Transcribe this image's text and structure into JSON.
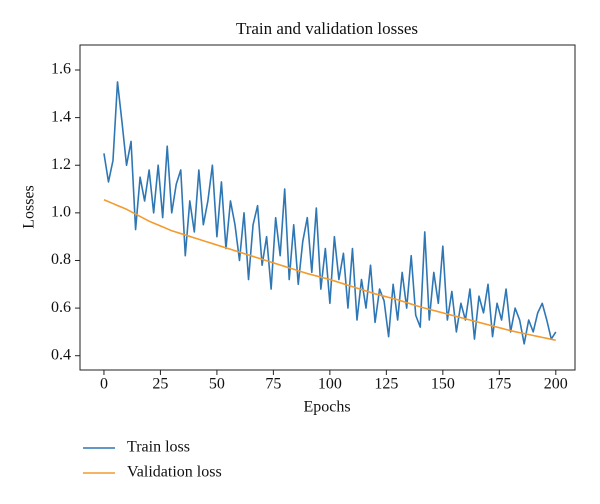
{
  "chart_data": {
    "type": "line",
    "title": "Train and validation losses",
    "xlabel": "Epochs",
    "ylabel": "Losses",
    "x": [
      0,
      2,
      4,
      6,
      8,
      10,
      12,
      14,
      16,
      18,
      20,
      22,
      24,
      26,
      28,
      30,
      32,
      34,
      36,
      38,
      40,
      42,
      44,
      46,
      48,
      50,
      52,
      54,
      56,
      58,
      60,
      62,
      64,
      66,
      68,
      70,
      72,
      74,
      76,
      78,
      80,
      82,
      84,
      86,
      88,
      90,
      92,
      94,
      96,
      98,
      100,
      102,
      104,
      106,
      108,
      110,
      112,
      114,
      116,
      118,
      120,
      122,
      124,
      126,
      128,
      130,
      132,
      134,
      136,
      138,
      140,
      142,
      144,
      146,
      148,
      150,
      152,
      154,
      156,
      158,
      160,
      162,
      164,
      166,
      168,
      170,
      172,
      174,
      176,
      178,
      180,
      182,
      184,
      186,
      188,
      190,
      192,
      194,
      196,
      198,
      200
    ],
    "series": [
      {
        "name": "Train loss",
        "color": "#2f77b4",
        "values": [
          1.25,
          1.13,
          1.22,
          1.55,
          1.38,
          1.2,
          1.3,
          0.93,
          1.15,
          1.05,
          1.18,
          1.0,
          1.2,
          0.98,
          1.28,
          1.0,
          1.12,
          1.18,
          0.82,
          1.05,
          0.92,
          1.18,
          0.95,
          1.05,
          1.2,
          0.9,
          1.13,
          0.85,
          1.05,
          0.95,
          0.8,
          1.0,
          0.72,
          0.95,
          1.03,
          0.78,
          0.9,
          0.68,
          0.98,
          0.82,
          1.1,
          0.72,
          0.95,
          0.7,
          0.88,
          0.98,
          0.75,
          1.02,
          0.68,
          0.85,
          0.62,
          0.9,
          0.72,
          0.83,
          0.6,
          0.85,
          0.55,
          0.72,
          0.6,
          0.78,
          0.54,
          0.68,
          0.63,
          0.48,
          0.7,
          0.55,
          0.75,
          0.6,
          0.82,
          0.57,
          0.52,
          0.92,
          0.55,
          0.75,
          0.62,
          0.86,
          0.55,
          0.67,
          0.5,
          0.62,
          0.55,
          0.68,
          0.47,
          0.65,
          0.58,
          0.7,
          0.48,
          0.62,
          0.55,
          0.68,
          0.5,
          0.6,
          0.55,
          0.45,
          0.55,
          0.5,
          0.58,
          0.62,
          0.55,
          0.47,
          0.5
        ]
      },
      {
        "name": "Validation loss",
        "color": "#f39b2f",
        "values": [
          1.055,
          1.047,
          1.039,
          1.031,
          1.023,
          1.015,
          1.005,
          0.995,
          0.985,
          0.975,
          0.965,
          0.957,
          0.949,
          0.941,
          0.933,
          0.925,
          0.919,
          0.913,
          0.907,
          0.901,
          0.895,
          0.889,
          0.883,
          0.877,
          0.871,
          0.865,
          0.859,
          0.853,
          0.847,
          0.841,
          0.835,
          0.829,
          0.823,
          0.817,
          0.811,
          0.805,
          0.799,
          0.793,
          0.787,
          0.781,
          0.775,
          0.769,
          0.763,
          0.757,
          0.751,
          0.745,
          0.74,
          0.735,
          0.73,
          0.725,
          0.72,
          0.714,
          0.708,
          0.702,
          0.696,
          0.69,
          0.684,
          0.678,
          0.672,
          0.666,
          0.66,
          0.655,
          0.65,
          0.645,
          0.64,
          0.635,
          0.629,
          0.623,
          0.617,
          0.611,
          0.605,
          0.6,
          0.595,
          0.59,
          0.585,
          0.58,
          0.575,
          0.57,
          0.565,
          0.56,
          0.555,
          0.55,
          0.545,
          0.54,
          0.535,
          0.53,
          0.525,
          0.52,
          0.515,
          0.51,
          0.505,
          0.501,
          0.497,
          0.493,
          0.489,
          0.485,
          0.481,
          0.477,
          0.473,
          0.469,
          0.465
        ]
      }
    ],
    "xlim": [
      -10.6,
      208.5
    ],
    "ylim": [
      0.34,
      1.705
    ],
    "xticks": [
      0,
      25,
      50,
      75,
      100,
      125,
      150,
      175,
      200
    ],
    "yticks": [
      0.4,
      0.6,
      0.8,
      {
        "value": 1,
        "label": "1.0"
      },
      1.2,
      1.4,
      1.6
    ],
    "grid": false,
    "legend": "below"
  }
}
